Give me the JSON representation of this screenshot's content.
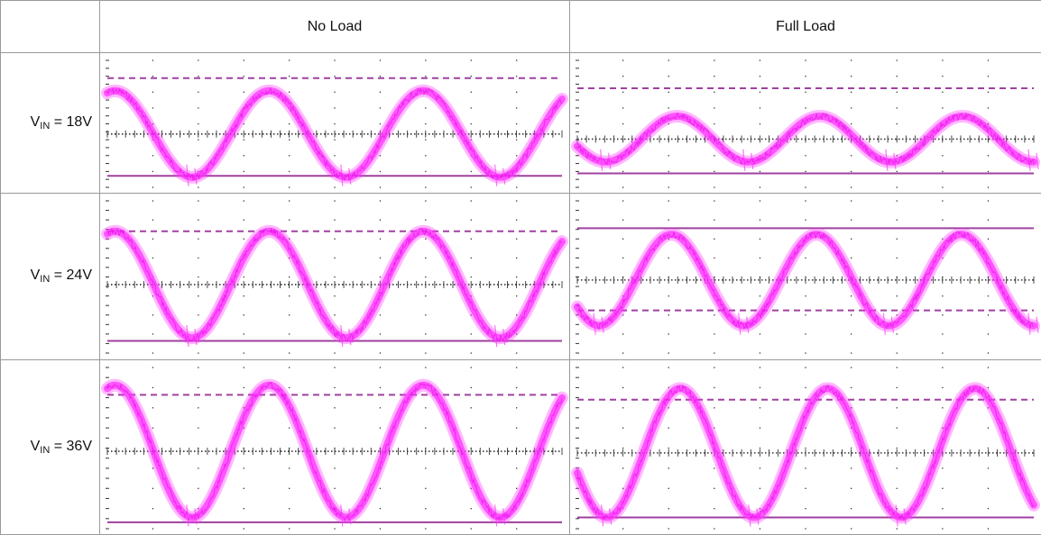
{
  "table": {
    "columns": [
      "",
      "No Load",
      "Full Load"
    ],
    "rows": [
      {
        "label_main": "V",
        "label_sub": "IN",
        "label_rest": " = 18V"
      },
      {
        "label_main": "V",
        "label_sub": "IN",
        "label_rest": " = 24V"
      },
      {
        "label_main": "V",
        "label_sub": "IN",
        "label_rest": " = 36V"
      }
    ]
  },
  "colors": {
    "trace": "#ff33ff",
    "trace_dark": "#e000e0",
    "marker": "#a040a0",
    "grid": "#333333",
    "border": "#9a9a9a"
  },
  "scopes": [
    {
      "cycles": 2.95,
      "phase": 0.2,
      "amp": 0.68,
      "center": 0.58,
      "dashed": 0.14,
      "solid": 0.91,
      "solid_is_top": false
    },
    {
      "cycles": 3.2,
      "phase": 0.55,
      "amp": 0.36,
      "center": 0.62,
      "dashed": 0.22,
      "solid": 0.89,
      "solid_is_top": false
    },
    {
      "cycles": 2.95,
      "phase": 0.2,
      "amp": 0.7,
      "center": 0.55,
      "dashed": 0.2,
      "solid": 0.92,
      "solid_is_top": false
    },
    {
      "cycles": 3.15,
      "phase": 0.6,
      "amp": 0.6,
      "center": 0.52,
      "dashed": 0.72,
      "solid": 0.18,
      "solid_is_top": true
    },
    {
      "cycles": 2.95,
      "phase": 0.2,
      "amp": 0.82,
      "center": 0.52,
      "dashed": 0.17,
      "solid": 0.96,
      "solid_is_top": false
    },
    {
      "cycles": 3.1,
      "phase": 0.55,
      "amp": 0.8,
      "center": 0.53,
      "dashed": 0.2,
      "solid": 0.93,
      "solid_is_top": false
    }
  ]
}
